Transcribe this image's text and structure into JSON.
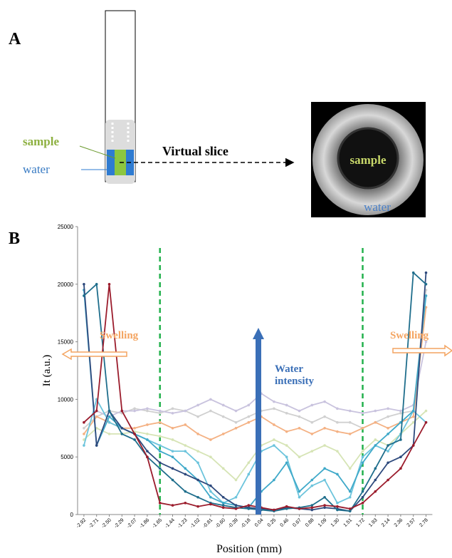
{
  "panel_a": {
    "label": "A",
    "tube_labels": [
      "sample",
      "water"
    ],
    "slice_label": "Virtual slice",
    "image_labels": [
      "sample",
      "water"
    ]
  },
  "chart_data": {
    "type": "line",
    "panel_label": "B",
    "x_label": "Position (mm)",
    "y_label": "It (a.u.)",
    "categories": [
      "-2.92",
      "-2.71",
      "-2.50",
      "-2.29",
      "-2.07",
      "-1.86",
      "-1.65",
      "-1.44",
      "-1.23",
      "-1.02",
      "-0.81",
      "-0.60",
      "-0.39",
      "-0.18",
      "0.04",
      "0.25",
      "0.46",
      "0.67",
      "0.88",
      "1.09",
      "1.30",
      "1.51",
      "1.72",
      "1.93",
      "2.14",
      "2.36",
      "2.57",
      "2.78"
    ],
    "ylim": [
      0,
      25000
    ],
    "yticks": [
      0,
      5000,
      10000,
      15000,
      20000,
      25000
    ],
    "reference_lines": [
      -1.65,
      1.72
    ],
    "reference_color": "#22b14c",
    "annotations": [
      {
        "text": "Swelling",
        "side": "left",
        "color": "#f4a460"
      },
      {
        "text": "Swelling",
        "side": "right",
        "color": "#f4a460"
      },
      {
        "text": "Water intensity",
        "color": "#3a6fb7"
      }
    ],
    "series": [
      {
        "color": "#d0d0d0",
        "values": [
          7500,
          8500,
          9000,
          8800,
          9200,
          9000,
          8800,
          9200,
          9000,
          8500,
          9000,
          8500,
          8000,
          8500,
          9000,
          9200,
          8800,
          8500,
          8000,
          8500,
          8000,
          8000,
          7500,
          8000,
          8500,
          8800,
          9000,
          19500
        ]
      },
      {
        "color": "#c9c3de",
        "values": [
          8000,
          9000,
          8500,
          9000,
          9000,
          9200,
          9000,
          8800,
          9000,
          9500,
          10000,
          9500,
          9000,
          9500,
          10500,
          9800,
          9500,
          9000,
          9500,
          9800,
          9200,
          9000,
          8800,
          9000,
          9200,
          9000,
          9500,
          15000
        ]
      },
      {
        "color": "#f4b183",
        "values": [
          7000,
          8500,
          8000,
          7500,
          7500,
          7800,
          8000,
          7500,
          7800,
          7000,
          6500,
          7000,
          7500,
          8000,
          8500,
          7800,
          7200,
          7500,
          7000,
          7500,
          7200,
          7000,
          7500,
          8000,
          7500,
          8000,
          8500,
          18000
        ]
      },
      {
        "color": "#d6e4b5",
        "values": [
          6500,
          7500,
          7000,
          7000,
          7200,
          7000,
          6800,
          6500,
          6000,
          5500,
          5000,
          4000,
          3000,
          4500,
          6000,
          6500,
          6000,
          5000,
          5500,
          6000,
          5500,
          4000,
          5500,
          6500,
          6000,
          7000,
          8000,
          9000
        ]
      },
      {
        "color": "#6cc4dc",
        "values": [
          6000,
          10000,
          8000,
          7500,
          7000,
          6500,
          6000,
          5500,
          5500,
          4500,
          2000,
          1000,
          1500,
          3500,
          5500,
          6000,
          5000,
          1500,
          2500,
          3000,
          1000,
          1500,
          5000,
          6000,
          5500,
          7000,
          9000,
          8000
        ]
      },
      {
        "color": "#3fa9c9",
        "values": [
          19500,
          6000,
          8500,
          7500,
          7000,
          6500,
          5500,
          5000,
          4000,
          3000,
          1500,
          1000,
          800,
          600,
          2000,
          3000,
          4500,
          2000,
          3000,
          4000,
          3500,
          2000,
          4500,
          6000,
          7000,
          8000,
          9000,
          19000
        ]
      },
      {
        "color": "#2e4a7d",
        "values": [
          20000,
          6000,
          9000,
          7500,
          7000,
          5500,
          4500,
          4000,
          3500,
          3000,
          2500,
          1500,
          800,
          600,
          500,
          400,
          600,
          500,
          400,
          600,
          500,
          300,
          1500,
          3000,
          4500,
          5000,
          6000,
          21000
        ]
      },
      {
        "color": "#1f6e8c",
        "values": [
          19000,
          20000,
          9000,
          7000,
          6500,
          5000,
          4000,
          3000,
          2000,
          1500,
          1000,
          800,
          600,
          500,
          400,
          300,
          500,
          600,
          800,
          1500,
          400,
          300,
          2000,
          4000,
          6000,
          6500,
          21000,
          20000
        ]
      },
      {
        "color": "#9b1c2c",
        "values": [
          8000,
          9000,
          20000,
          9000,
          7000,
          5000,
          1000,
          800,
          1000,
          700,
          900,
          600,
          500,
          800,
          600,
          400,
          700,
          500,
          600,
          800,
          700,
          500,
          1000,
          2000,
          3000,
          4000,
          6000,
          8000
        ]
      }
    ]
  }
}
